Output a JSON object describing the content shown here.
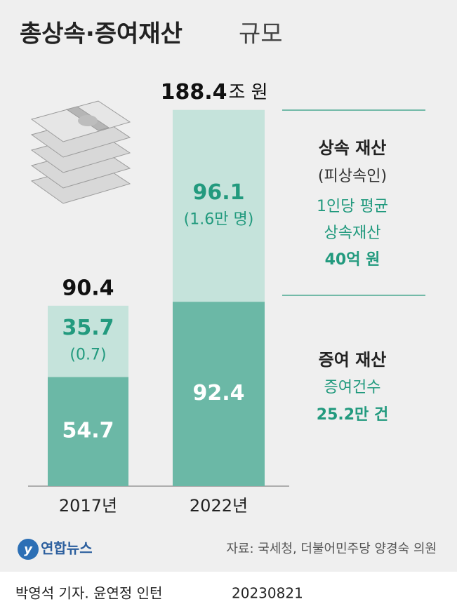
{
  "chart_data": {
    "type": "stacked-bar",
    "title": "총상속·증여재산",
    "title_suffix": "규모",
    "categories": [
      "2017년",
      "2022년"
    ],
    "series": [
      {
        "name": "증여 재산",
        "color": "#6bb8a6",
        "label_color": "#ffffff",
        "values": [
          54.7,
          92.4
        ]
      },
      {
        "name": "상속 재산",
        "color": "#c5e3db",
        "label_color": "#229a7e",
        "values": [
          35.7,
          96.1
        ],
        "count_labels": [
          "(0.7)",
          "(1.6만 명)"
        ]
      }
    ],
    "totals": [
      90.4,
      188.4
    ],
    "total_unit": "조 원",
    "annotations": {
      "inheritance": [
        "(피상속인)",
        "1인당 평균",
        "상속재산",
        "40억 원"
      ],
      "gift": [
        "증여건수",
        "25.2만 건"
      ]
    },
    "source": "자료: 국세청, 더불어민주당 양경숙 의원",
    "logo": "연합뉴스",
    "byline": "박영석 기자. 윤연정 인턴",
    "date": "20230821"
  }
}
